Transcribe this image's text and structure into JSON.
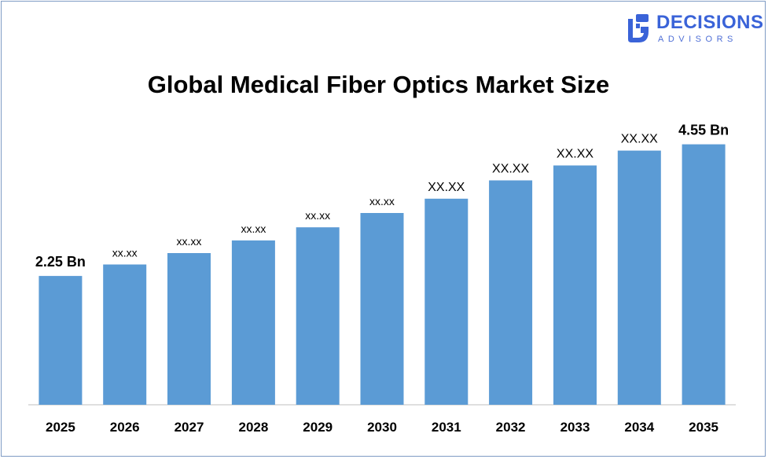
{
  "logo": {
    "word": "DECISIONS",
    "sub": "ADVISORS",
    "icon": "decisions-advisors-logo-mark",
    "color": "#3a63d8"
  },
  "chart_data": {
    "type": "bar",
    "title": "Global Medical Fiber Optics Market Size",
    "xlabel": "",
    "ylabel": "",
    "categories": [
      "2025",
      "2026",
      "2027",
      "2028",
      "2029",
      "2030",
      "2031",
      "2032",
      "2033",
      "2034",
      "2035"
    ],
    "values": [
      2.25,
      2.45,
      2.65,
      2.87,
      3.1,
      3.35,
      3.6,
      3.92,
      4.18,
      4.44,
      4.55
    ],
    "data_labels": [
      "2.25 Bn",
      "xx.xx",
      "xx.xx",
      "xx.xx",
      "xx.xx",
      "xx.xx",
      "XX.XX",
      "XX.XX",
      "XX.XX",
      "XX.XX",
      "4.55 Bn"
    ],
    "ylim": [
      0,
      5.45
    ],
    "grid": false,
    "legend": "none",
    "bar_color": "#5b9bd5"
  }
}
